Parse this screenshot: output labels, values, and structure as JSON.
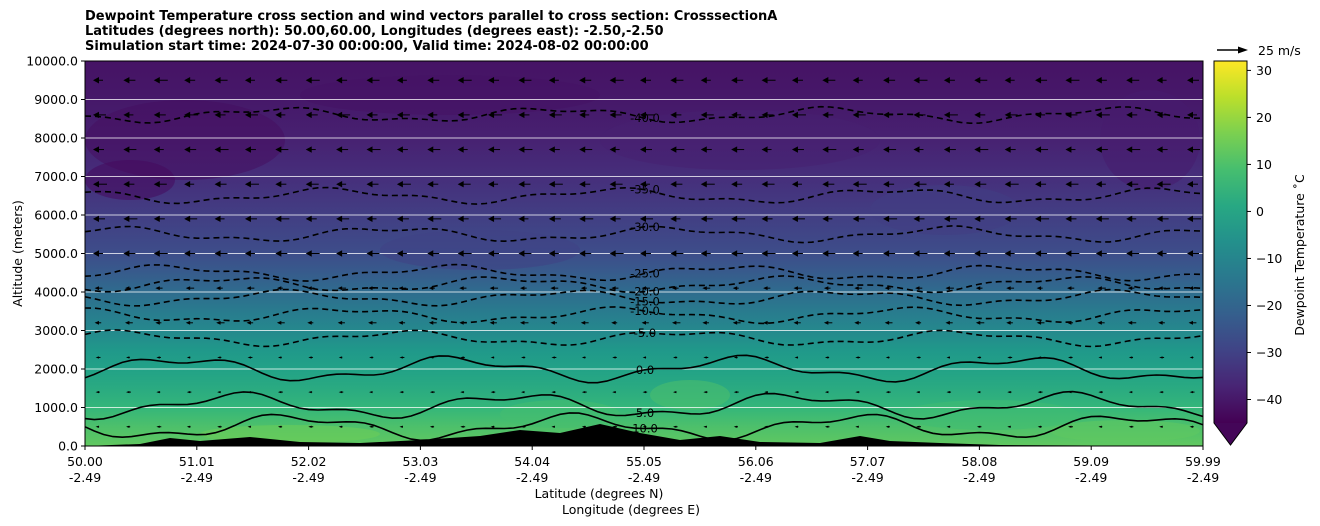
{
  "title_lines": [
    "Dewpoint Temperature cross section and wind vectors parallel to cross section: CrosssectionA",
    "Latitudes (degrees north): 50.00,60.00, Longitudes (degrees east): -2.50,-2.50",
    "Simulation start time: 2024-07-30 00:00:00, Valid time: 2024-08-02 00:00:00"
  ],
  "chart_data": {
    "type": "heatmap",
    "title": "Dewpoint Temperature cross section and wind vectors parallel to cross section: CrosssectionA",
    "ylabel": "Altitude (meters)",
    "xlabel_lines": [
      "Latitude (degrees N)",
      "Longitude (degrees E)"
    ],
    "ylim": [
      0,
      10000
    ],
    "y_ticks": [
      "0.0",
      "1000.0",
      "2000.0",
      "3000.0",
      "4000.0",
      "5000.0",
      "6000.0",
      "7000.0",
      "8000.0",
      "9000.0",
      "10000.0"
    ],
    "x_ticks": [
      {
        "lat": "50.00",
        "lon": "-2.49"
      },
      {
        "lat": "51.01",
        "lon": "-2.49"
      },
      {
        "lat": "52.02",
        "lon": "-2.49"
      },
      {
        "lat": "53.03",
        "lon": "-2.49"
      },
      {
        "lat": "54.04",
        "lon": "-2.49"
      },
      {
        "lat": "55.05",
        "lon": "-2.49"
      },
      {
        "lat": "56.06",
        "lon": "-2.49"
      },
      {
        "lat": "57.07",
        "lon": "-2.49"
      },
      {
        "lat": "58.08",
        "lon": "-2.49"
      },
      {
        "lat": "59.09",
        "lon": "-2.49"
      },
      {
        "lat": "59.99",
        "lon": "-2.49"
      }
    ],
    "colorbar": {
      "label": "Dewpoint Temperature ˚C",
      "min": -45,
      "max": 32,
      "ticks": [
        "−40",
        "−30",
        "−20",
        "−10",
        "0",
        "10",
        "20",
        "30"
      ],
      "extend": "min",
      "colormap": "viridis"
    },
    "quiver_key": {
      "label": "25 m/s"
    },
    "dewpoint_profile": [
      {
        "altitude": 0,
        "value": 13
      },
      {
        "altitude": 500,
        "value": 10
      },
      {
        "altitude": 1000,
        "value": 6
      },
      {
        "altitude": 1500,
        "value": 2
      },
      {
        "altitude": 2000,
        "value": -1
      },
      {
        "altitude": 2500,
        "value": -4
      },
      {
        "altitude": 3000,
        "value": -9
      },
      {
        "altitude": 3500,
        "value": -13
      },
      {
        "altitude": 4000,
        "value": -18
      },
      {
        "altitude": 4500,
        "value": -23
      },
      {
        "altitude": 5000,
        "value": -27
      },
      {
        "altitude": 6000,
        "value": -31
      },
      {
        "altitude": 7000,
        "value": -35
      },
      {
        "altitude": 8000,
        "value": -38
      },
      {
        "altitude": 9000,
        "value": -40
      },
      {
        "altitude": 10000,
        "value": -41
      }
    ],
    "contours": [
      {
        "level": 10,
        "label": "10.0",
        "style": "solid",
        "altitude": 500
      },
      {
        "level": 5,
        "label": "5.0",
        "style": "solid",
        "altitude": 1050
      },
      {
        "level": 0,
        "label": "0.0",
        "style": "solid",
        "altitude": 2000
      },
      {
        "level": -5,
        "label": "-5.0",
        "style": "dashed",
        "altitude": 2800
      },
      {
        "level": -10,
        "label": "-10.0",
        "style": "dashed",
        "altitude": 3400
      },
      {
        "level": -15,
        "label": "-15.0",
        "style": "dashed",
        "altitude": 3850
      },
      {
        "level": -20,
        "label": "-20.0",
        "style": "dashed",
        "altitude": 4200
      },
      {
        "level": -25,
        "label": "-25.0",
        "style": "dashed",
        "altitude": 4500
      },
      {
        "level": -30,
        "label": "-30.0",
        "style": "dashed",
        "altitude": 5500
      },
      {
        "level": -35,
        "label": "-35.0",
        "style": "dashed",
        "altitude": 6500
      },
      {
        "level": -40,
        "label": "-40.0",
        "style": "dashed",
        "altitude": 8600
      }
    ]
  }
}
